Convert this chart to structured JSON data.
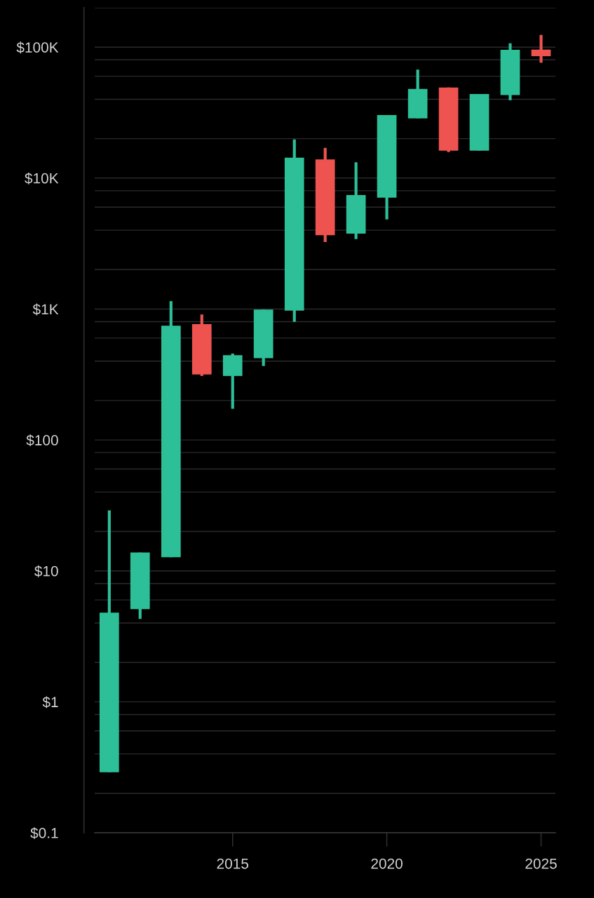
{
  "chart_data": {
    "type": "candlestick",
    "x": [
      "2011",
      "2012",
      "2013",
      "2014",
      "2015",
      "2016",
      "2017",
      "2018",
      "2019",
      "2020",
      "2021",
      "2022",
      "2023",
      "2024",
      "2025"
    ],
    "ohlc": [
      [
        0.29,
        29,
        0.29,
        4.8
      ],
      [
        5.1,
        13.8,
        4.3,
        13.8
      ],
      [
        12.7,
        1150,
        12.7,
        745
      ],
      [
        767,
        908,
        308,
        316
      ],
      [
        308,
        457,
        173,
        444
      ],
      [
        422,
        990,
        367,
        990
      ],
      [
        973,
        19700,
        799,
        14300
      ],
      [
        13900,
        17000,
        3250,
        3660
      ],
      [
        3760,
        13200,
        3420,
        7410
      ],
      [
        7080,
        30300,
        4840,
        30300
      ],
      [
        28600,
        67400,
        28600,
        48000
      ],
      [
        49200,
        49200,
        15800,
        16200
      ],
      [
        16200,
        43800,
        16200,
        43800
      ],
      [
        43000,
        107000,
        39300,
        95500
      ],
      [
        95700,
        124000,
        76000,
        85300
      ]
    ],
    "colors": [
      "#2dbf98",
      "#2dbf98",
      "#2dbf98",
      "#ef5350",
      "#2dbf98",
      "#2dbf98",
      "#2dbf98",
      "#ef5350",
      "#2dbf98",
      "#2dbf98",
      "#2dbf98",
      "#ef5350",
      "#2dbf98",
      "#2dbf98",
      "#ef5350"
    ],
    "log": "y",
    "xlim": [
      "2010-07-12",
      "2025-06-20"
    ],
    "xticks": [
      "2015",
      "2020",
      "2025"
    ],
    "ylim": [
      0.1,
      200000
    ],
    "yticks": [
      {
        "value": 0.1,
        "label": "$0.1"
      },
      {
        "value": 0.2,
        "label": null
      },
      {
        "value": 0.4,
        "label": null
      },
      {
        "value": 0.6,
        "label": null
      },
      {
        "value": 0.8,
        "label": null
      },
      {
        "value": 1,
        "label": "$1"
      },
      {
        "value": 2,
        "label": null
      },
      {
        "value": 4,
        "label": null
      },
      {
        "value": 6,
        "label": null
      },
      {
        "value": 8,
        "label": null
      },
      {
        "value": 10,
        "label": "$10"
      },
      {
        "value": 20,
        "label": null
      },
      {
        "value": 40,
        "label": null
      },
      {
        "value": 60,
        "label": null
      },
      {
        "value": 80,
        "label": null
      },
      {
        "value": 100,
        "label": "$100"
      },
      {
        "value": 200,
        "label": null
      },
      {
        "value": 400,
        "label": null
      },
      {
        "value": 600,
        "label": null
      },
      {
        "value": 800,
        "label": null
      },
      {
        "value": 1000,
        "label": "$1K"
      },
      {
        "value": 2000,
        "label": null
      },
      {
        "value": 4000,
        "label": null
      },
      {
        "value": 6000,
        "label": null
      },
      {
        "value": 8000,
        "label": null
      },
      {
        "value": 10000,
        "label": "$10K"
      },
      {
        "value": 20000,
        "label": null
      },
      {
        "value": 40000,
        "label": null
      },
      {
        "value": 60000,
        "label": null
      },
      {
        "value": 80000,
        "label": null
      },
      {
        "value": 100000,
        "label": "$100K"
      },
      {
        "value": 200000,
        "label": null
      }
    ],
    "grid": "y"
  }
}
